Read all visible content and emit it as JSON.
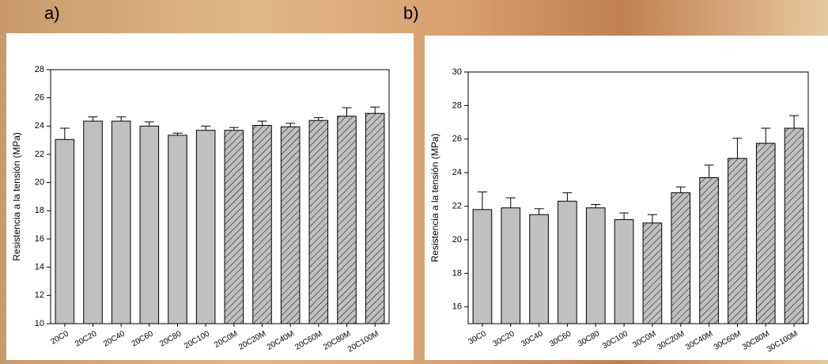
{
  "chart_data": [
    {
      "type": "bar",
      "panel_label": "a)",
      "ylabel": "Resistencia a la tensión (MPa)",
      "categories": [
        "20C0",
        "20C20",
        "20C40",
        "20C60",
        "20C80",
        "20C100",
        "20C0M",
        "20C20M",
        "20C40M",
        "20C60M",
        "20C80M",
        "20C100M"
      ],
      "values": [
        23.05,
        24.35,
        24.35,
        24.0,
        23.35,
        23.7,
        23.7,
        24.05,
        23.95,
        24.4,
        24.7,
        24.9
      ],
      "errors": [
        0.8,
        0.3,
        0.3,
        0.3,
        0.15,
        0.3,
        0.2,
        0.3,
        0.25,
        0.2,
        0.6,
        0.45
      ],
      "hatched": [
        false,
        false,
        false,
        false,
        false,
        false,
        true,
        true,
        true,
        true,
        true,
        true
      ],
      "color": "#c0c0c0",
      "ylim": [
        10,
        28
      ],
      "yticks": [
        10,
        12,
        14,
        16,
        18,
        20,
        22,
        24,
        26,
        28
      ]
    },
    {
      "type": "bar",
      "panel_label": "b)",
      "ylabel": "Resistencia a la tensión (MPa)",
      "categories": [
        "30C0",
        "30C20",
        "30C40",
        "30C60",
        "30C80",
        "30C100",
        "30C0M",
        "30C20M",
        "30C40M",
        "30C60M",
        "30C80M",
        "30C100M"
      ],
      "values": [
        21.8,
        21.9,
        21.5,
        22.3,
        21.9,
        21.2,
        21.0,
        22.8,
        23.7,
        24.85,
        25.75,
        26.65
      ],
      "errors": [
        1.05,
        0.6,
        0.35,
        0.5,
        0.2,
        0.4,
        0.5,
        0.35,
        0.75,
        1.2,
        0.9,
        0.75
      ],
      "hatched": [
        false,
        false,
        false,
        false,
        false,
        false,
        true,
        true,
        true,
        true,
        true,
        true
      ],
      "color": "#c0c0c0",
      "ylim": [
        15,
        30
      ],
      "yticks": [
        16,
        18,
        20,
        22,
        24,
        26,
        28,
        30
      ]
    }
  ]
}
